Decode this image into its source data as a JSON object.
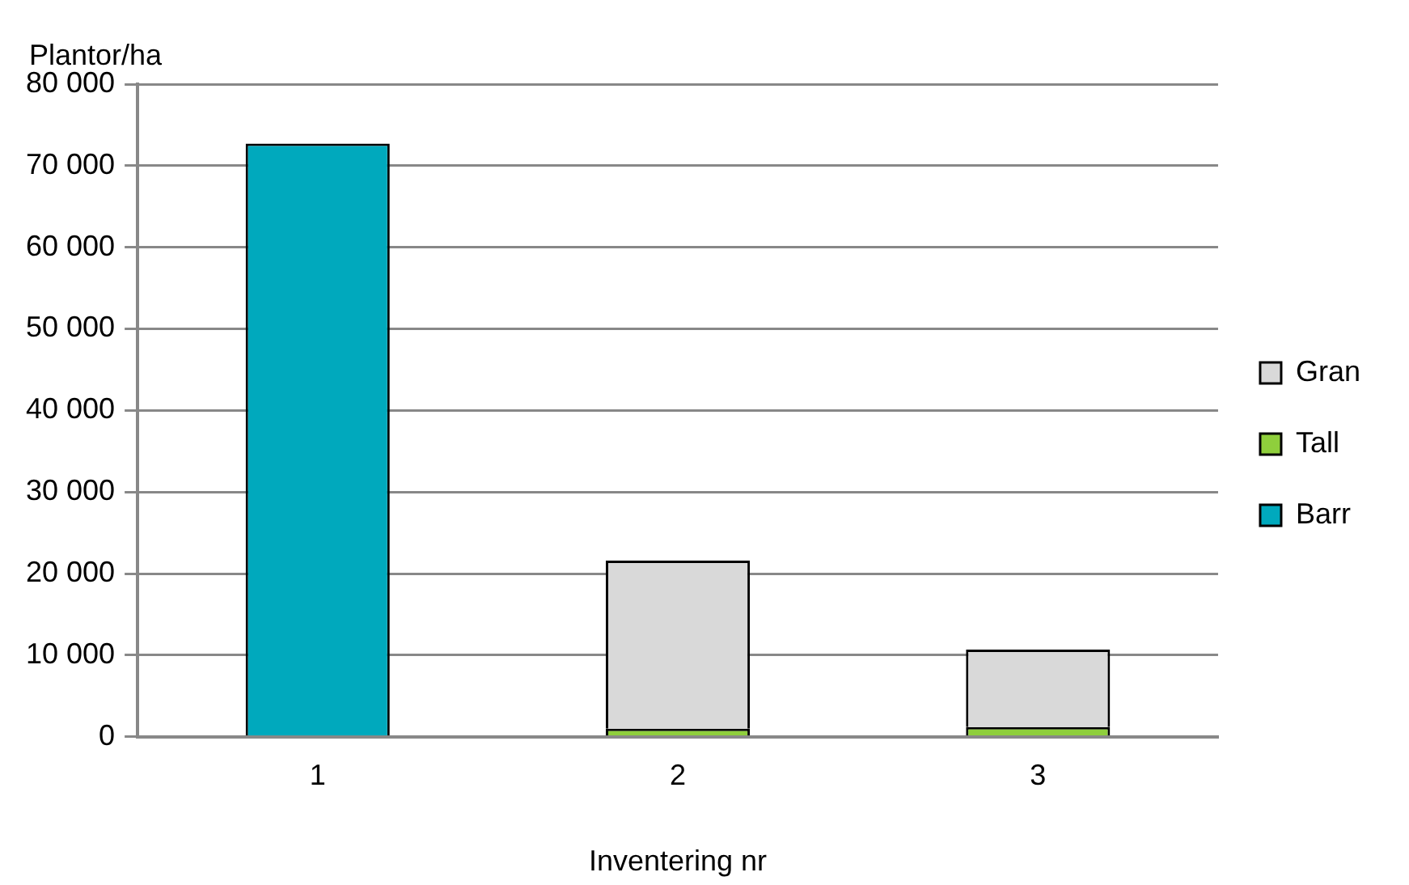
{
  "chart_data": {
    "type": "bar",
    "stacked": true,
    "ylabel": "Plantor/ha",
    "xlabel": "Inventering nr",
    "categories": [
      "1",
      "2",
      "3"
    ],
    "series": [
      {
        "name": "Barr",
        "color": "#00a9bd",
        "values": [
          72700,
          null,
          null
        ]
      },
      {
        "name": "Tall",
        "color": "#8fcf3c",
        "values": [
          null,
          1000,
          1200
        ]
      },
      {
        "name": "Gran",
        "color": "#d9d9d9",
        "values": [
          null,
          20600,
          9500
        ]
      }
    ],
    "ylim": [
      0,
      80000
    ],
    "yticks": [
      {
        "value": 0,
        "label": "0"
      },
      {
        "value": 10000,
        "label": "10 000"
      },
      {
        "value": 20000,
        "label": "20 000"
      },
      {
        "value": 30000,
        "label": "30 000"
      },
      {
        "value": 40000,
        "label": "40 000"
      },
      {
        "value": 50000,
        "label": "50 000"
      },
      {
        "value": 60000,
        "label": "60 000"
      },
      {
        "value": 70000,
        "label": "70 000"
      },
      {
        "value": 80000,
        "label": "80 000"
      }
    ],
    "grid": "y",
    "legend": "right"
  }
}
